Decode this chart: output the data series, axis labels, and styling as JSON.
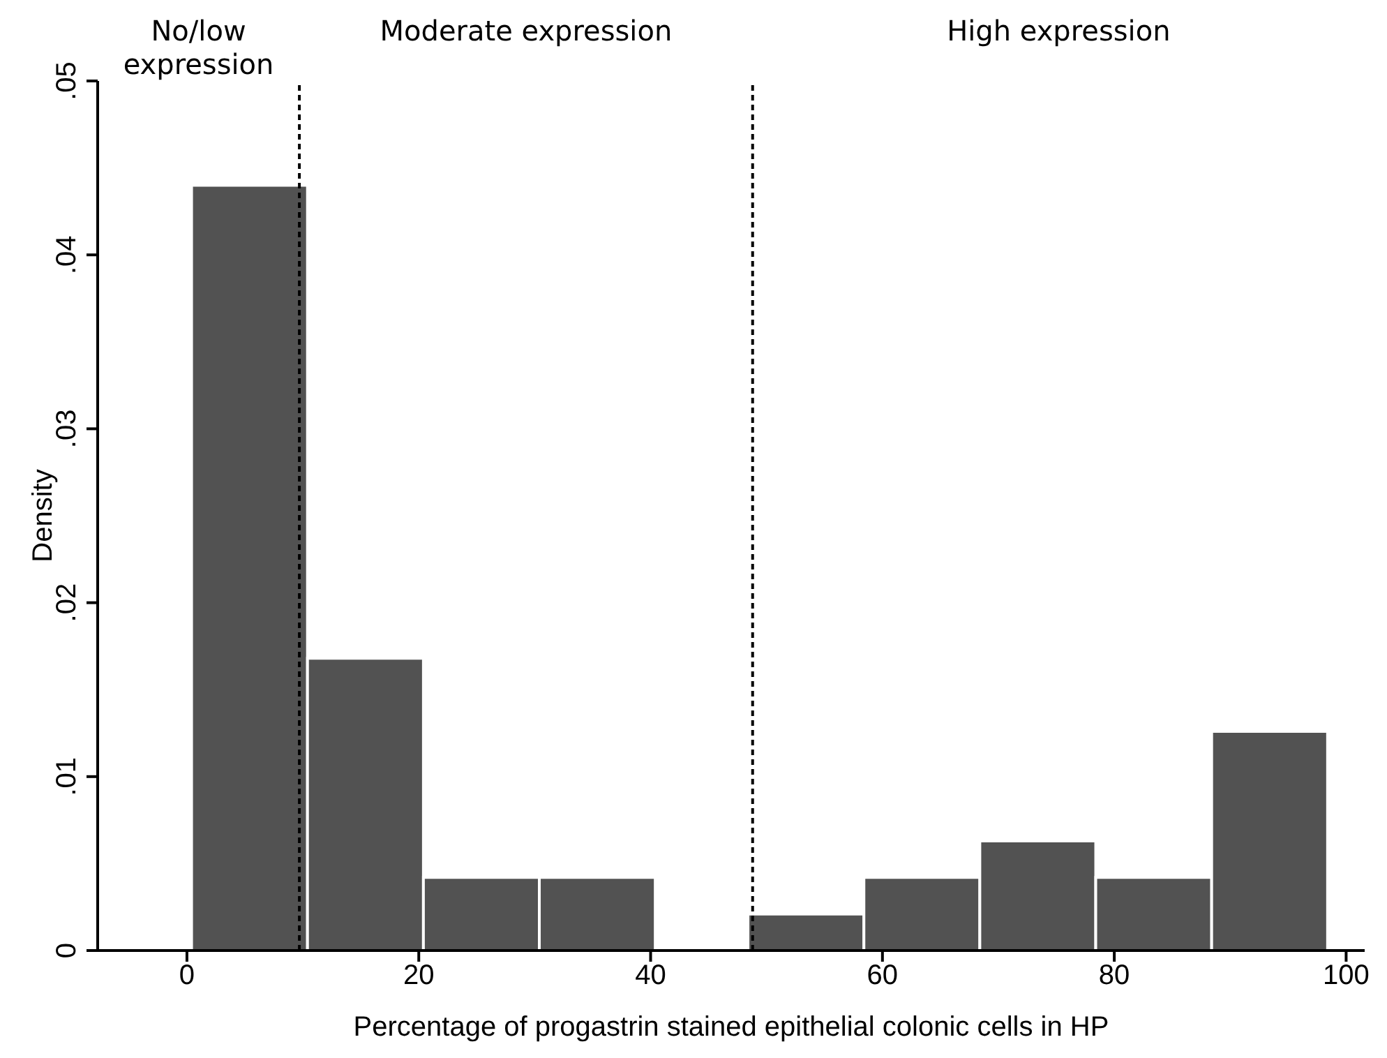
{
  "chart_data": {
    "type": "histogram",
    "xlabel": "Percentage of progastrin stained epithelial colonic cells in HP",
    "ylabel": "Density",
    "bins": [
      0.4,
      10.4,
      20.4,
      30.4,
      40.4,
      48.4,
      58.4,
      68.4,
      78.4,
      88.4,
      98.4
    ],
    "values": [
      0.044,
      0.0168,
      0.0042,
      0.0042,
      0,
      0.0021,
      0.0042,
      0.0063,
      0.0042,
      0.0126
    ],
    "color": "#525252",
    "xlim": [
      -7.7,
      101.6
    ],
    "xticks": [
      0,
      20,
      40,
      60,
      80,
      100
    ],
    "ylim": [
      0,
      0.05
    ],
    "yticks": [
      0,
      {
        "value": 0.01,
        "label": ".01"
      },
      {
        "value": 0.02,
        "label": ".02"
      },
      {
        "value": 0.03,
        "label": ".03"
      },
      {
        "value": 0.04,
        "label": ".04"
      },
      {
        "value": 0.05,
        "label": ".05"
      }
    ],
    "ref_lines": [
      {
        "axis": "x",
        "value": 9.7,
        "line_style": "dashed",
        "color": "#000000"
      },
      {
        "axis": "x",
        "value": 48.8,
        "line_style": "dashed",
        "color": "#000000"
      }
    ],
    "annotations": [
      "No/low expression",
      "Moderate expression",
      "High expression"
    ],
    "grid": false
  }
}
